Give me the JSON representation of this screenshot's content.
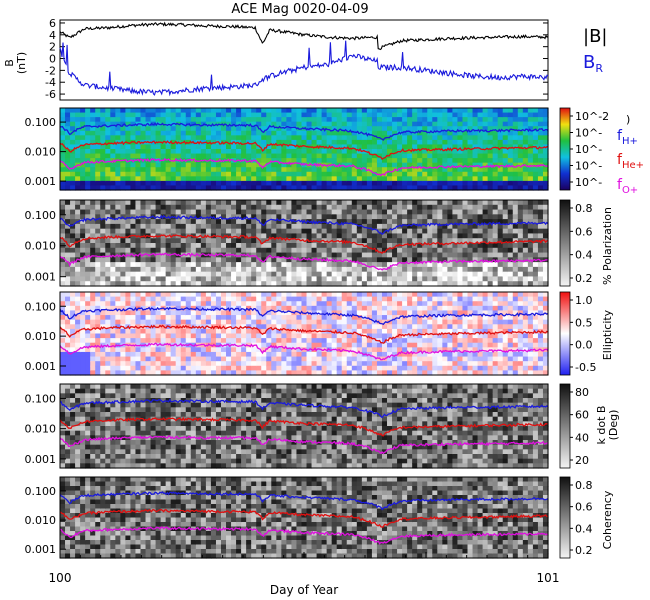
{
  "title": "ACE Mag 0020-04-09",
  "xlabel": "Day of Year",
  "x_ticks": [
    "100",
    "101"
  ],
  "colors": {
    "total_field": "#000000",
    "radial_field": "#1a1adc",
    "f_h": "#1a1adc",
    "f_he": "#e01010",
    "f_o": "#e010e0"
  },
  "chart_data": [
    {
      "type": "line",
      "panel": "magnetic-field",
      "xlabel": "Day of Year",
      "ylabel": "B (nT)",
      "x_range": [
        100,
        101
      ],
      "ylim": [
        -7,
        6.5
      ],
      "y_ticks": [
        "6",
        "4",
        "2",
        "0",
        "-2",
        "-4",
        "-6"
      ],
      "series": [
        {
          "name": "|B|",
          "x": [
            100.0,
            100.02,
            100.05,
            100.1,
            100.15,
            100.2,
            100.25,
            100.3,
            100.35,
            100.4,
            100.415,
            100.43,
            100.45,
            100.5,
            100.55,
            100.6,
            100.65,
            100.65,
            100.7,
            100.75,
            100.8,
            100.85,
            100.9,
            100.95,
            101.0
          ],
          "y": [
            4.5,
            3.5,
            5.0,
            5.2,
            5.6,
            5.8,
            5.7,
            5.5,
            5.4,
            5.2,
            2.5,
            4.8,
            4.6,
            4.0,
            3.6,
            3.4,
            3.6,
            1.6,
            3.0,
            3.2,
            3.4,
            3.5,
            3.6,
            3.7,
            3.6
          ]
        },
        {
          "name": "B_R",
          "x": [
            100.0,
            100.02,
            100.05,
            100.1,
            100.15,
            100.2,
            100.25,
            100.3,
            100.35,
            100.4,
            100.415,
            100.43,
            100.45,
            100.5,
            100.55,
            100.6,
            100.65,
            100.65,
            100.7,
            100.75,
            100.8,
            100.85,
            100.9,
            100.95,
            101.0
          ],
          "y": [
            1.5,
            -2.5,
            -4.5,
            -5.0,
            -5.5,
            -5.8,
            -5.4,
            -5.0,
            -4.8,
            -4.5,
            -3.5,
            -3.0,
            -2.5,
            -1.5,
            -1.0,
            0.5,
            -0.5,
            -1.5,
            -1.5,
            -2.0,
            -2.5,
            -3.0,
            -3.2,
            -3.0,
            -3.2
          ]
        }
      ],
      "legend": [
        "|B|",
        "B_R"
      ]
    },
    {
      "type": "heatmap",
      "panel": "power-spectrum",
      "ylabel": "",
      "y_scale": "log",
      "y_ticks": [
        "0.100",
        "0.010",
        "0.001"
      ],
      "colorbar_ticks": [
        "10^-2",
        "10^-",
        "10^-",
        "10^-",
        "10^-"
      ],
      "colorbar_title": ")"
    },
    {
      "type": "heatmap",
      "panel": "polarization",
      "y_scale": "log",
      "y_ticks": [
        "0.100",
        "0.010",
        "0.001"
      ],
      "colorbar_label": "% Polarization",
      "colorbar_ticks": [
        "0.8",
        "0.6",
        "0.4",
        "0.2"
      ]
    },
    {
      "type": "heatmap",
      "panel": "ellipticity",
      "y_scale": "log",
      "y_ticks": [
        "0.100",
        "0.010",
        "0.001"
      ],
      "colorbar_label": "Ellipticity",
      "colorbar_ticks": [
        "1.0",
        "0.5",
        "0.0",
        "-0.5"
      ]
    },
    {
      "type": "heatmap",
      "panel": "k-dot-b",
      "y_scale": "log",
      "y_ticks": [
        "0.100",
        "0.010",
        "0.001"
      ],
      "colorbar_label": "k dot B (Deg)",
      "colorbar_ticks": [
        "80",
        "60",
        "40",
        "20"
      ]
    },
    {
      "type": "heatmap",
      "panel": "coherency",
      "y_scale": "log",
      "y_ticks": [
        "0.100",
        "0.010",
        "0.001"
      ],
      "colorbar_label": "Coherency",
      "colorbar_ticks": [
        "0.8",
        "0.6",
        "0.4",
        "0.2"
      ]
    }
  ],
  "gyro_lines": {
    "x": [
      100.0,
      100.02,
      100.05,
      100.1,
      100.2,
      100.3,
      100.4,
      100.415,
      100.43,
      100.5,
      100.6,
      100.65,
      100.66,
      100.7,
      100.8,
      100.9,
      101.0
    ],
    "f_h": [
      0.075,
      0.04,
      0.07,
      0.075,
      0.085,
      0.08,
      0.078,
      0.045,
      0.07,
      0.06,
      0.05,
      0.03,
      0.025,
      0.045,
      0.05,
      0.052,
      0.055
    ],
    "f_he": [
      0.019,
      0.01,
      0.017,
      0.019,
      0.021,
      0.02,
      0.019,
      0.011,
      0.018,
      0.015,
      0.013,
      0.007,
      0.006,
      0.011,
      0.012,
      0.013,
      0.014
    ],
    "f_o": [
      0.0047,
      0.0025,
      0.0043,
      0.0047,
      0.0053,
      0.005,
      0.0049,
      0.0028,
      0.0045,
      0.0037,
      0.0032,
      0.0018,
      0.0016,
      0.0028,
      0.0031,
      0.0032,
      0.0034
    ]
  },
  "labels": {
    "b_ylabel_line1": "B",
    "b_ylabel_line2": "(nT)",
    "legend_b": "|B|",
    "legend_br": "B",
    "legend_br_sub": "R",
    "f_h": "f",
    "f_h_sub": "H+",
    "f_he": "f",
    "f_he_sub": "He+",
    "f_o": "f",
    "f_o_sub": "O+",
    "pol_label": "% Polarization",
    "ell_label": "Ellipticity",
    "kdb_label_line1": "k dot B",
    "kdb_label_line2": "(Deg)",
    "coh_label": "Coherency",
    "ps_cb_title": ")"
  }
}
